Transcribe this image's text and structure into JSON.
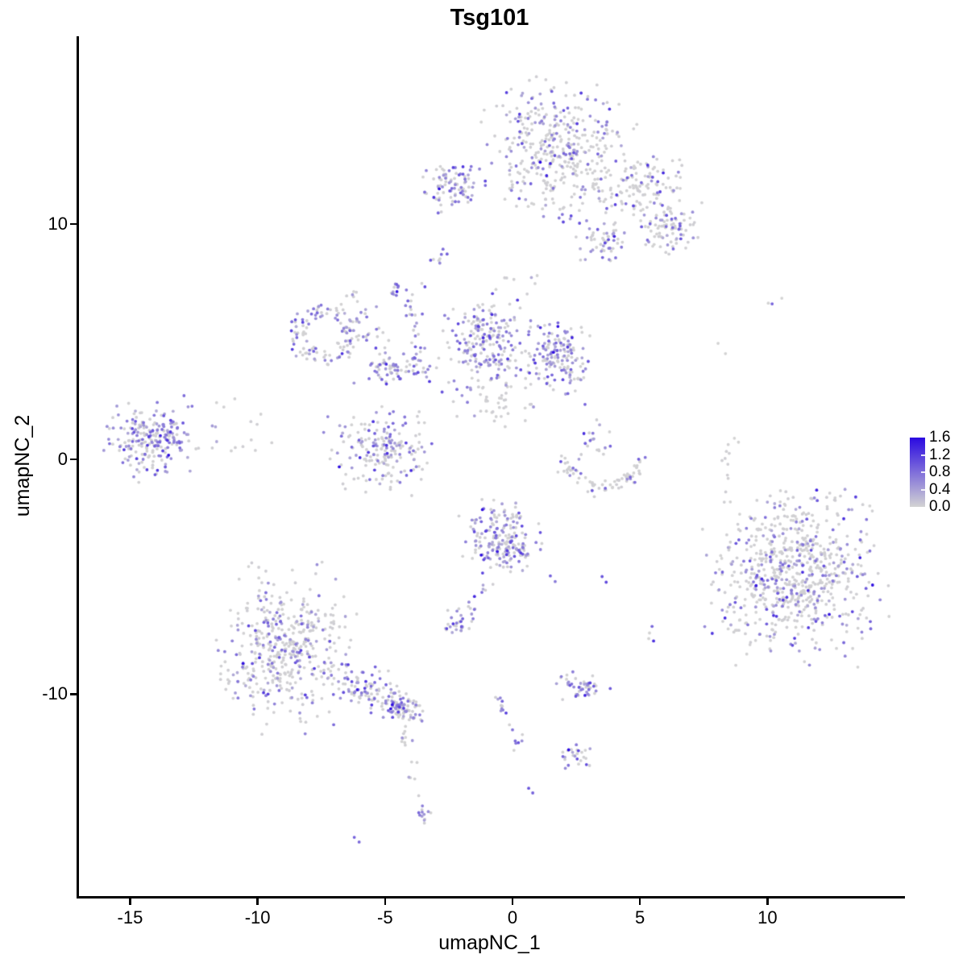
{
  "title": "Tsg101",
  "axes": {
    "x": {
      "label": "umapNC_1",
      "tick_values": [
        -15,
        -10,
        -5,
        0,
        5,
        10
      ],
      "tick_labels": [
        "-15",
        "-10",
        "-5",
        "0",
        "5",
        "10"
      ],
      "range": [
        -17.1,
        15.3
      ]
    },
    "y": {
      "label": "umapNC_2",
      "tick_values": [
        -10,
        0,
        10
      ],
      "tick_labels": [
        "-10",
        "0",
        "10"
      ],
      "range": [
        -18.6,
        18.0
      ]
    }
  },
  "legend": {
    "labels": [
      "1.6",
      "1.2",
      "0.8",
      "0.4",
      "0.0"
    ],
    "values": [
      1.6,
      1.2,
      0.8,
      0.4,
      0.0
    ],
    "low_color": "#D3D3D3",
    "high_color": "#2A09E1"
  },
  "chart_data": {
    "type": "scatter",
    "title": "Tsg101",
    "xlabel": "umapNC_1",
    "ylabel": "umapNC_2",
    "xlim": [
      -17.1,
      15.3
    ],
    "ylim": [
      -18.6,
      18.0
    ],
    "grid": false,
    "legend_position": "right",
    "color_scale": {
      "low": "#D3D3D3",
      "high": "#2A09E1",
      "domain": [
        0.0,
        1.6
      ],
      "variable": "Tsg101 expression"
    },
    "point_radius_px": 1.9,
    "seed": 1337,
    "clusters": [
      {
        "name": "top-main",
        "shape": "blob",
        "x": 1.7,
        "y": 13.2,
        "rx": 2.55,
        "ry": 2.6,
        "n": 400,
        "expr_frac": 0.27
      },
      {
        "name": "top-arm-1",
        "shape": "blob",
        "x": 4.9,
        "y": 11.5,
        "rx": 1.6,
        "ry": 1.2,
        "n": 120,
        "expr_frac": 0.22
      },
      {
        "name": "top-arm-2",
        "shape": "blob",
        "x": 6.1,
        "y": 9.9,
        "rx": 1.15,
        "ry": 1.05,
        "n": 85,
        "expr_frac": 0.25
      },
      {
        "name": "top-arm-lobe",
        "shape": "blob",
        "x": 3.45,
        "y": 9.25,
        "rx": 0.9,
        "ry": 0.85,
        "n": 55,
        "expr_frac": 0.45
      },
      {
        "name": "top-left-satellite",
        "shape": "blob",
        "x": -2.45,
        "y": 11.65,
        "rx": 1.1,
        "ry": 1.05,
        "n": 90,
        "expr_frac": 0.45
      },
      {
        "name": "mid-ring",
        "shape": "ring",
        "x": -7.45,
        "y": 5.3,
        "rx": 1.45,
        "ry": 1.4,
        "n": 115,
        "expr_frac": 0.45
      },
      {
        "name": "mid-strand-a",
        "shape": "line",
        "line": [
          -6.35,
          7.0,
          -5.25,
          4.3
        ],
        "jitter": 0.22,
        "n": 25,
        "expr_frac": 0.5
      },
      {
        "name": "mid-band",
        "shape": "blob",
        "x": -4.6,
        "y": 3.9,
        "rx": 1.45,
        "ry": 0.6,
        "n": 80,
        "expr_frac": 0.5
      },
      {
        "name": "mid-central",
        "shape": "blob",
        "x": -1.15,
        "y": 5.0,
        "rx": 1.45,
        "ry": 1.9,
        "n": 220,
        "expr_frac": 0.5
      },
      {
        "name": "mid-right",
        "shape": "blob",
        "x": 1.7,
        "y": 4.45,
        "rx": 1.3,
        "ry": 1.55,
        "n": 160,
        "expr_frac": 0.45
      },
      {
        "name": "mid-below-scatter",
        "shape": "blob",
        "x": -0.8,
        "y": 2.4,
        "rx": 1.7,
        "ry": 1.0,
        "n": 38,
        "expr_frac": 0.18
      },
      {
        "name": "mid-strand-b",
        "shape": "line",
        "line": [
          -4.15,
          6.7,
          -3.75,
          4.35
        ],
        "jitter": 0.16,
        "n": 20,
        "expr_frac": 0.5
      },
      {
        "name": "mid-tip",
        "shape": "blob",
        "x": -4.6,
        "y": 7.2,
        "rx": 0.35,
        "ry": 0.3,
        "n": 12,
        "expr_frac": 0.6
      },
      {
        "name": "mid-strand-c",
        "shape": "line",
        "line": [
          -4.0,
          6.9,
          -2.8,
          8.7
        ],
        "jitter": 0.13,
        "n": 8,
        "expr_frac": 0.5
      },
      {
        "name": "left-main",
        "shape": "blob",
        "x": -14.25,
        "y": 0.85,
        "rx": 1.55,
        "ry": 1.55,
        "n": 230,
        "expr_frac": 0.55
      },
      {
        "name": "left-outliers",
        "shape": "blob",
        "x": -11.1,
        "y": 1.2,
        "rx": 1.6,
        "ry": 1.5,
        "n": 16,
        "expr_frac": 0.3
      },
      {
        "name": "center-crescent",
        "shape": "blob",
        "x": -5.25,
        "y": 0.35,
        "rx": 1.95,
        "ry": 1.55,
        "n": 190,
        "expr_frac": 0.4
      },
      {
        "name": "right-smile",
        "shape": "arc",
        "x": 3.45,
        "y": -0.68,
        "rx": 1.55,
        "ry": 0.6,
        "jitter": 0.16,
        "n": 75,
        "expr_frac": 0.13
      },
      {
        "name": "smile-hook",
        "shape": "blob",
        "x": 3.2,
        "y": 0.9,
        "rx": 0.8,
        "ry": 0.8,
        "n": 20,
        "expr_frac": 0.4
      },
      {
        "name": "right-strand",
        "shape": "line",
        "line": [
          8.3,
          0.75,
          8.35,
          -1.8
        ],
        "jitter": 0.12,
        "n": 9,
        "expr_frac": 0.12
      },
      {
        "name": "center-lower",
        "shape": "blob",
        "x": -0.5,
        "y": -3.4,
        "rx": 1.45,
        "ry": 1.45,
        "n": 200,
        "expr_frac": 0.5
      },
      {
        "name": "center-lower-tail",
        "shape": "line",
        "line": [
          -1.1,
          -5.05,
          -1.85,
          -6.6
        ],
        "jitter": 0.16,
        "n": 12,
        "expr_frac": 0.5
      },
      {
        "name": "small-blob-below",
        "shape": "blob",
        "x": -2.25,
        "y": -7.0,
        "rx": 0.55,
        "ry": 0.55,
        "n": 30,
        "expr_frac": 0.6
      },
      {
        "name": "right-main",
        "shape": "blob",
        "x": 11.0,
        "y": -5.0,
        "rx": 3.05,
        "ry": 3.1,
        "n": 720,
        "expr_frac": 0.28
      },
      {
        "name": "bottomleft-main",
        "shape": "blob",
        "x": -9.05,
        "y": -8.05,
        "rx": 2.3,
        "ry": 2.95,
        "n": 460,
        "expr_frac": 0.33
      },
      {
        "name": "bottomleft-arm",
        "shape": "line",
        "line": [
          -6.7,
          -9.4,
          -4.2,
          -10.7
        ],
        "jitter": 0.38,
        "n": 120,
        "expr_frac": 0.35
      },
      {
        "name": "bottomleft-arm-tip",
        "shape": "blob",
        "x": -4.45,
        "y": -10.55,
        "rx": 0.75,
        "ry": 0.55,
        "n": 55,
        "expr_frac": 0.55
      },
      {
        "name": "tail-strand",
        "shape": "line",
        "line": [
          -4.4,
          -11.4,
          -3.8,
          -14.7
        ],
        "jitter": 0.13,
        "n": 16,
        "expr_frac": 0.4
      },
      {
        "name": "tail-end-clump",
        "shape": "blob",
        "x": -3.6,
        "y": -15.15,
        "rx": 0.3,
        "ry": 0.42,
        "n": 12,
        "expr_frac": 0.7
      },
      {
        "name": "bottom-strand",
        "shape": "line",
        "line": [
          -0.75,
          -10.0,
          0.2,
          -12.2
        ],
        "jitter": 0.16,
        "n": 18,
        "expr_frac": 0.45
      },
      {
        "name": "bottom-small-right",
        "shape": "blob",
        "x": 2.35,
        "y": -12.65,
        "rx": 0.75,
        "ry": 0.5,
        "n": 26,
        "expr_frac": 0.4
      },
      {
        "name": "bottom-mid-cluster",
        "shape": "blob",
        "x": 2.6,
        "y": -9.65,
        "rx": 0.95,
        "ry": 0.5,
        "n": 48,
        "expr_frac": 0.45
      },
      {
        "name": "top-gap-scatter",
        "shape": "blob",
        "x": 0.1,
        "y": 7.7,
        "rx": 0.8,
        "ry": 0.45,
        "n": 6,
        "expr_frac": 0.2
      }
    ],
    "singles": [
      [
        2.75,
        2.33,
        0.9
      ],
      [
        7.97,
        4.93,
        0
      ],
      [
        8.26,
        4.49,
        0
      ],
      [
        9.94,
        6.64,
        0
      ],
      [
        10.09,
        6.61,
        0.9
      ],
      [
        10.47,
        6.85,
        0
      ],
      [
        8.61,
        0.89,
        0
      ],
      [
        8.77,
        0.72,
        0
      ],
      [
        8.45,
        -1.82,
        0
      ],
      [
        5.38,
        -7.12,
        0.85
      ],
      [
        5.28,
        -7.4,
        0
      ],
      [
        5.25,
        -7.64,
        0
      ],
      [
        5.44,
        -7.74,
        1.3
      ],
      [
        1.39,
        -4.97,
        0.9
      ],
      [
        1.58,
        -5.21,
        0.7
      ],
      [
        3.42,
        -5.0,
        1.0
      ],
      [
        3.58,
        -5.24,
        1.1
      ],
      [
        0.54,
        -14.01,
        1.0
      ],
      [
        0.7,
        -14.21,
        0.9
      ],
      [
        -6.3,
        -16.1,
        0.9
      ],
      [
        -6.11,
        -16.3,
        0.85
      ],
      [
        -2.82,
        8.94,
        0.8
      ],
      [
        -2.66,
        8.73,
        0.9
      ],
      [
        -2.94,
        8.53,
        0
      ],
      [
        -3.54,
        11.37,
        0.8
      ],
      [
        -3.01,
        10.48,
        0.85
      ]
    ]
  }
}
